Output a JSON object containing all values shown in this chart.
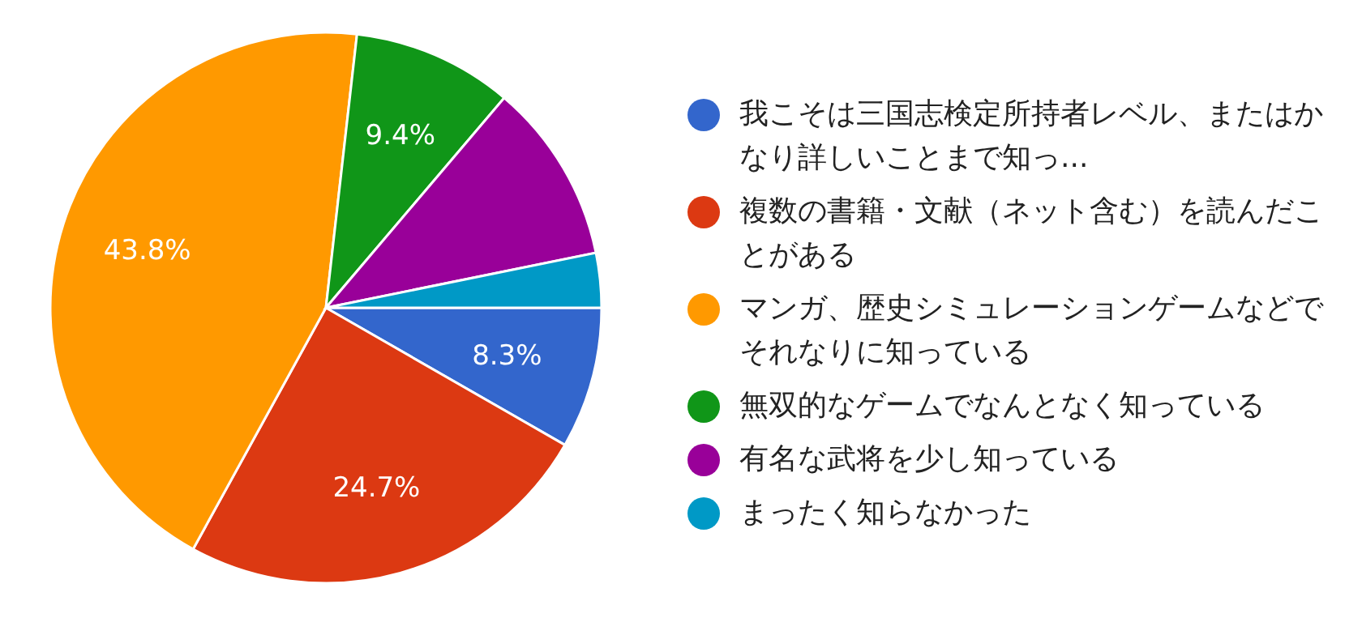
{
  "chart_data": {
    "type": "pie",
    "categories": [
      "我こそは三国志検定所持者レベル、またはかなり詳しいことまで知っ...",
      "複数の書籍・文献（ネット含む）を読んだことがある",
      "マンガ、歴史シミュレーションゲームなどでそれなりに知っている",
      "無双的なゲームでなんとなく知っている",
      "有名な武将を少し知っている",
      "まったく知らなかった"
    ],
    "values": [
      8.3,
      24.7,
      43.8,
      9.4,
      10.6,
      3.2
    ],
    "colors": [
      "#3366cc",
      "#dc3912",
      "#ff9900",
      "#109618",
      "#990099",
      "#0099c6"
    ],
    "value_labels": [
      "8.3%",
      "24.7%",
      "43.8%",
      "9.4%",
      null,
      null
    ],
    "legend": "right"
  }
}
